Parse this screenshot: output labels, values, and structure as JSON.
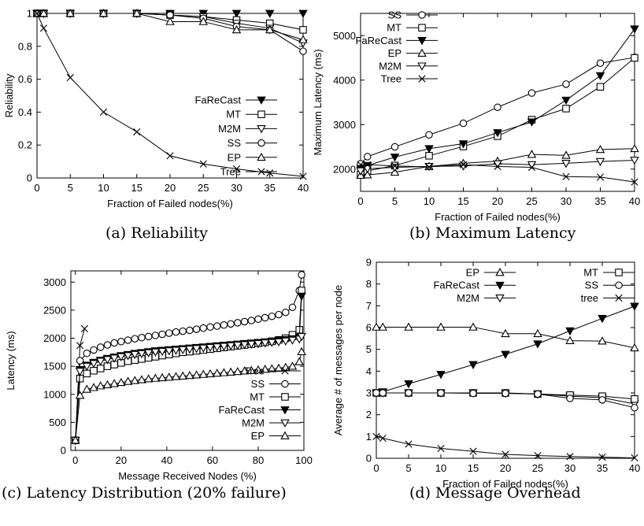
{
  "captions": {
    "a": "(a) Reliability",
    "b": "(b) Maximum Latency",
    "c": "(c)  Latency  Distribution  (20% failure)",
    "d": "(d) Message Overhead"
  },
  "chart_data": [
    {
      "id": "a",
      "type": "line",
      "title": "",
      "xlabel": "Fraction of Failed nodes(%)",
      "ylabel": "Reliability",
      "xlim": [
        0,
        40
      ],
      "ylim": [
        0,
        1
      ],
      "xticks": [
        0,
        5,
        10,
        15,
        20,
        25,
        30,
        35,
        40
      ],
      "yticks": [
        0,
        0.2,
        0.4,
        0.6,
        0.8,
        1
      ],
      "ytick_labels": [
        "0",
        "0.2",
        "0.4",
        "0.6",
        "0.8",
        "1"
      ],
      "legend": "right-middle",
      "series": [
        {
          "name": "FaReCast",
          "marker": "tri-down-filled",
          "x": [
            0,
            1,
            5,
            10,
            15,
            20,
            25,
            30,
            35,
            40
          ],
          "values": [
            1,
            1,
            1,
            1,
            1,
            1,
            1,
            1,
            1,
            1
          ]
        },
        {
          "name": "MT",
          "marker": "square",
          "x": [
            0,
            1,
            5,
            10,
            15,
            20,
            25,
            30,
            35,
            40
          ],
          "values": [
            1,
            1,
            1,
            1,
            1,
            0.99,
            0.98,
            0.96,
            0.94,
            0.9
          ]
        },
        {
          "name": "M2M",
          "marker": "tri-down",
          "x": [
            0,
            1,
            5,
            10,
            15,
            20,
            25,
            30,
            35,
            40
          ],
          "values": [
            1,
            1,
            1,
            1,
            1,
            0.99,
            0.98,
            0.94,
            0.91,
            0.82
          ]
        },
        {
          "name": "SS",
          "marker": "circle",
          "x": [
            0,
            1,
            5,
            10,
            15,
            20,
            25,
            30,
            35,
            40
          ],
          "values": [
            1,
            1,
            1,
            1,
            1,
            0.99,
            0.97,
            0.92,
            0.9,
            0.77
          ]
        },
        {
          "name": "EP",
          "marker": "tri-up",
          "x": [
            0,
            1,
            5,
            10,
            15,
            20,
            25,
            30,
            35,
            40
          ],
          "values": [
            1,
            1,
            1,
            1,
            1,
            0.95,
            0.95,
            0.9,
            0.9,
            0.84
          ]
        },
        {
          "name": "Tree",
          "marker": "x",
          "x": [
            0,
            1,
            5,
            10,
            15,
            20,
            25,
            30,
            35,
            40
          ],
          "values": [
            1,
            0.91,
            0.61,
            0.4,
            0.28,
            0.135,
            0.085,
            0.055,
            0.03,
            0.01
          ]
        }
      ]
    },
    {
      "id": "b",
      "type": "line",
      "title": "",
      "xlabel": "Fraction of Failed nodes(%)",
      "ylabel": "Maximum Latency (ms)",
      "xlim": [
        0,
        40
      ],
      "ylim": [
        1500,
        5500
      ],
      "xticks": [
        0,
        5,
        10,
        15,
        20,
        25,
        30,
        35,
        40
      ],
      "yticks": [
        2000,
        3000,
        4000,
        5000
      ],
      "legend": "top-left",
      "series": [
        {
          "name": "SS",
          "marker": "circle",
          "x": [
            0,
            1,
            5,
            10,
            15,
            20,
            25,
            30,
            35,
            40
          ],
          "values": [
            2120,
            2280,
            2500,
            2770,
            3030,
            3390,
            3710,
            3910,
            4380,
            4510
          ]
        },
        {
          "name": "MT",
          "marker": "square",
          "x": [
            0,
            1,
            5,
            10,
            15,
            20,
            25,
            30,
            35,
            40
          ],
          "values": [
            1880,
            1960,
            2080,
            2300,
            2510,
            2740,
            3110,
            3360,
            3850,
            4500
          ]
        },
        {
          "name": "FaReCast",
          "marker": "tri-down-filled",
          "x": [
            0,
            1,
            5,
            10,
            15,
            20,
            25,
            30,
            35,
            40
          ],
          "values": [
            2010,
            2080,
            2270,
            2460,
            2570,
            2820,
            3060,
            3550,
            4100,
            5150
          ]
        },
        {
          "name": "EP",
          "marker": "tri-up",
          "x": [
            0,
            1,
            5,
            10,
            15,
            20,
            25,
            30,
            35,
            40
          ],
          "values": [
            1860,
            1870,
            1930,
            2060,
            2130,
            2180,
            2330,
            2310,
            2440,
            2460
          ]
        },
        {
          "name": "M2M",
          "marker": "tri-down",
          "x": [
            0,
            1,
            5,
            10,
            15,
            20,
            25,
            30,
            35,
            40
          ],
          "values": [
            1960,
            2010,
            2040,
            2060,
            2070,
            2120,
            2100,
            2130,
            2170,
            2200
          ]
        },
        {
          "name": "Tree",
          "marker": "x",
          "x": [
            0,
            1,
            5,
            10,
            15,
            20,
            25,
            30,
            35,
            40
          ],
          "values": [
            2100,
            2100,
            2070,
            2050,
            2100,
            2060,
            2040,
            1830,
            1820,
            1710
          ]
        }
      ]
    },
    {
      "id": "c",
      "type": "line",
      "title": "",
      "xlabel": "Message Received Nodes (%)",
      "ylabel": "Latency (ms)",
      "xlim": [
        -2,
        100
      ],
      "ylim": [
        0,
        3200
      ],
      "xticks": [
        0,
        20,
        40,
        60,
        80,
        100
      ],
      "yticks": [
        0,
        500,
        1000,
        1500,
        2000,
        2500,
        3000
      ],
      "legend": "bottom-right",
      "series": [
        {
          "name": "Tree",
          "marker": "x",
          "x": [
            0,
            2,
            4
          ],
          "values": [
            180,
            1870,
            2170
          ]
        },
        {
          "name": "SS",
          "marker": "circle",
          "x": [
            0,
            2,
            5,
            8,
            11,
            14,
            17,
            20,
            23,
            26,
            29,
            32,
            35,
            38,
            41,
            44,
            47,
            50,
            53,
            56,
            59,
            62,
            65,
            68,
            71,
            74,
            77,
            80,
            83,
            86,
            89,
            92,
            95,
            98,
            99
          ],
          "values": [
            180,
            1600,
            1730,
            1790,
            1840,
            1880,
            1915,
            1940,
            1965,
            1990,
            2010,
            2030,
            2050,
            2070,
            2090,
            2110,
            2125,
            2140,
            2160,
            2180,
            2200,
            2215,
            2235,
            2255,
            2275,
            2295,
            2315,
            2340,
            2365,
            2390,
            2420,
            2460,
            2550,
            2850,
            3130
          ]
        },
        {
          "name": "MT",
          "marker": "square",
          "x": [
            0,
            2,
            5,
            8,
            11,
            14,
            17,
            20,
            23,
            26,
            29,
            32,
            35,
            38,
            41,
            44,
            47,
            50,
            53,
            56,
            59,
            62,
            65,
            68,
            71,
            74,
            77,
            80,
            83,
            86,
            89,
            92,
            95,
            98,
            99
          ],
          "values": [
            180,
            1280,
            1370,
            1420,
            1460,
            1500,
            1530,
            1560,
            1590,
            1610,
            1630,
            1650,
            1670,
            1690,
            1710,
            1730,
            1750,
            1760,
            1775,
            1790,
            1805,
            1820,
            1835,
            1850,
            1865,
            1880,
            1895,
            1910,
            1925,
            1945,
            1970,
            2000,
            2060,
            2150,
            2850
          ]
        },
        {
          "name": "FaReCast",
          "marker": "tri-down-filled",
          "x": [
            0,
            2,
            5,
            8,
            11,
            14,
            17,
            20,
            23,
            26,
            29,
            32,
            35,
            38,
            41,
            44,
            47,
            50,
            53,
            56,
            59,
            62,
            65,
            68,
            71,
            74,
            77,
            80,
            83,
            86,
            89,
            92,
            95,
            98,
            99
          ],
          "values": [
            180,
            1440,
            1520,
            1570,
            1610,
            1640,
            1665,
            1690,
            1710,
            1730,
            1745,
            1760,
            1775,
            1785,
            1795,
            1805,
            1815,
            1825,
            1835,
            1845,
            1855,
            1865,
            1875,
            1885,
            1895,
            1905,
            1915,
            1925,
            1935,
            1945,
            1960,
            1975,
            1990,
            2020,
            2750
          ]
        },
        {
          "name": "M2M",
          "marker": "tri-down",
          "x": [
            0,
            2,
            5,
            8,
            11,
            14,
            17,
            20,
            23,
            26,
            29,
            32,
            35,
            38,
            41,
            44,
            47,
            50,
            53,
            56,
            59,
            62,
            65,
            68,
            71,
            74,
            77,
            80,
            83,
            86,
            89,
            92,
            95,
            98,
            99
          ],
          "values": [
            180,
            1410,
            1500,
            1550,
            1590,
            1620,
            1645,
            1670,
            1690,
            1710,
            1725,
            1740,
            1755,
            1765,
            1775,
            1785,
            1795,
            1805,
            1815,
            1825,
            1835,
            1845,
            1855,
            1865,
            1875,
            1885,
            1895,
            1905,
            1915,
            1925,
            1935,
            1950,
            1965,
            1985,
            2030
          ]
        },
        {
          "name": "EP",
          "marker": "tri-up",
          "x": [
            0,
            2,
            5,
            8,
            11,
            14,
            17,
            20,
            23,
            26,
            29,
            32,
            35,
            38,
            41,
            44,
            47,
            50,
            53,
            56,
            59,
            62,
            65,
            68,
            71,
            74,
            77,
            80,
            83,
            86,
            89,
            92,
            95,
            98,
            99
          ],
          "values": [
            180,
            980,
            1090,
            1120,
            1150,
            1170,
            1190,
            1210,
            1230,
            1245,
            1260,
            1275,
            1285,
            1295,
            1305,
            1315,
            1325,
            1335,
            1345,
            1355,
            1365,
            1375,
            1385,
            1395,
            1405,
            1415,
            1425,
            1435,
            1445,
            1455,
            1465,
            1480,
            1500,
            1580,
            1760
          ]
        }
      ]
    },
    {
      "id": "d",
      "type": "line",
      "title": "",
      "xlabel": "Fraction of Failed nodes(%)",
      "ylabel": "Average # of messages per node",
      "xlim": [
        0,
        40
      ],
      "ylim": [
        0,
        9
      ],
      "xticks": [
        0,
        5,
        10,
        15,
        20,
        25,
        30,
        35,
        40
      ],
      "yticks": [
        0,
        1,
        2,
        3,
        4,
        5,
        6,
        7,
        8,
        9
      ],
      "legend": "top, two columns",
      "series": [
        {
          "name": "EP",
          "marker": "tri-up",
          "x": [
            0,
            1,
            5,
            10,
            15,
            20,
            25,
            30,
            35,
            40
          ],
          "values": [
            6.02,
            6.02,
            6.02,
            6.02,
            6.02,
            5.72,
            5.72,
            5.4,
            5.38,
            5.07
          ]
        },
        {
          "name": "FaReCast",
          "marker": "tri-down-filled",
          "x": [
            0,
            1,
            5,
            10,
            15,
            20,
            25,
            30,
            35,
            40
          ],
          "values": [
            3.0,
            3.05,
            3.42,
            3.85,
            4.3,
            4.77,
            5.25,
            5.85,
            6.42,
            6.98
          ]
        },
        {
          "name": "M2M",
          "marker": "tri-down",
          "x": [
            0,
            1,
            5,
            10,
            15,
            20,
            25,
            30,
            35,
            40
          ],
          "values": [
            3.0,
            3.0,
            3.0,
            3.0,
            3.0,
            2.98,
            2.95,
            2.85,
            2.78,
            2.5
          ]
        },
        {
          "name": "MT",
          "marker": "square",
          "x": [
            0,
            1,
            5,
            10,
            15,
            20,
            25,
            30,
            35,
            40
          ],
          "values": [
            3.0,
            3.0,
            3.0,
            3.0,
            3.0,
            3.0,
            2.95,
            2.9,
            2.85,
            2.72
          ]
        },
        {
          "name": "SS",
          "marker": "circle",
          "x": [
            0,
            1,
            5,
            10,
            15,
            20,
            25,
            30,
            35,
            40
          ],
          "values": [
            3.0,
            3.0,
            3.0,
            3.0,
            2.98,
            2.98,
            2.95,
            2.75,
            2.68,
            2.32
          ]
        },
        {
          "name": "tree",
          "marker": "x",
          "x": [
            0,
            1,
            5,
            10,
            15,
            20,
            25,
            30,
            35,
            40
          ],
          "values": [
            1.0,
            0.92,
            0.65,
            0.45,
            0.32,
            0.18,
            0.12,
            0.08,
            0.05,
            0.02
          ]
        }
      ]
    }
  ]
}
